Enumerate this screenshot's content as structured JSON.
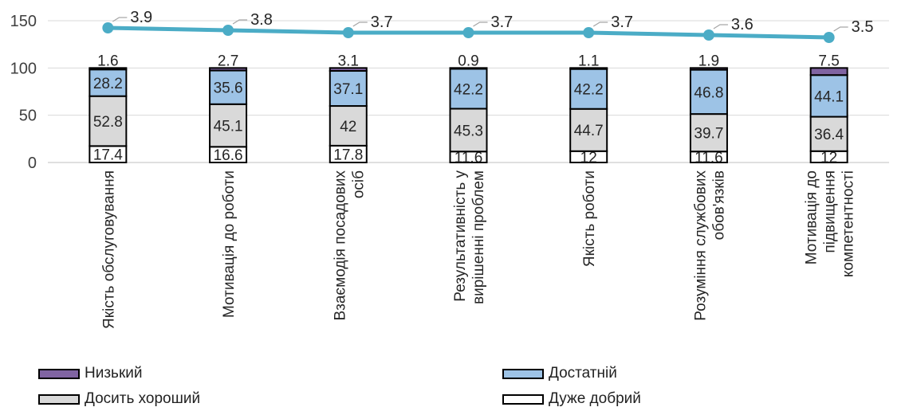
{
  "chart_data": {
    "type": "bar",
    "stacked": true,
    "categories": [
      [
        "Якість обслуговування"
      ],
      [
        "Мотивація до роботи"
      ],
      [
        "Взаємодія посадових",
        "осіб"
      ],
      [
        "Результативність у",
        "вирішенні проблем"
      ],
      [
        "Якість роботи"
      ],
      [
        "Розуміння службових",
        "обов'язків"
      ],
      [
        "Мотивація до",
        "підвищення",
        "компетентності"
      ]
    ],
    "series": [
      {
        "name": "Дуже добрий",
        "values": [
          17.4,
          16.6,
          17.8,
          11.6,
          12,
          11.6,
          12
        ],
        "color": "#ffffff"
      },
      {
        "name": "Досить хороший",
        "values": [
          52.8,
          45.1,
          42,
          45.3,
          44.7,
          39.7,
          36.4
        ],
        "color": "#d9d9d9"
      },
      {
        "name": "Достатній",
        "values": [
          28.2,
          35.6,
          37.1,
          42.2,
          42.2,
          46.8,
          44.1
        ],
        "color": "#9dc3e6"
      },
      {
        "name": "Низький",
        "values": [
          1.6,
          2.7,
          3.1,
          0.9,
          1.1,
          1.9,
          7.5
        ],
        "color": "#8064a2"
      }
    ],
    "line": {
      "values": [
        3.9,
        3.8,
        3.7,
        3.7,
        3.7,
        3.6,
        3.5
      ],
      "color": "#4bacc6"
    },
    "yticks": [
      0,
      50,
      100,
      150
    ],
    "ylim": [
      0,
      150
    ],
    "grid": true,
    "legend": "bottom"
  },
  "legend_items": [
    {
      "label": "Низький",
      "color": "#8064a2"
    },
    {
      "label": "Достатній",
      "color": "#9dc3e6"
    },
    {
      "label": "Досить хороший",
      "color": "#d9d9d9"
    },
    {
      "label": "Дуже добрий",
      "color": "#ffffff"
    }
  ]
}
